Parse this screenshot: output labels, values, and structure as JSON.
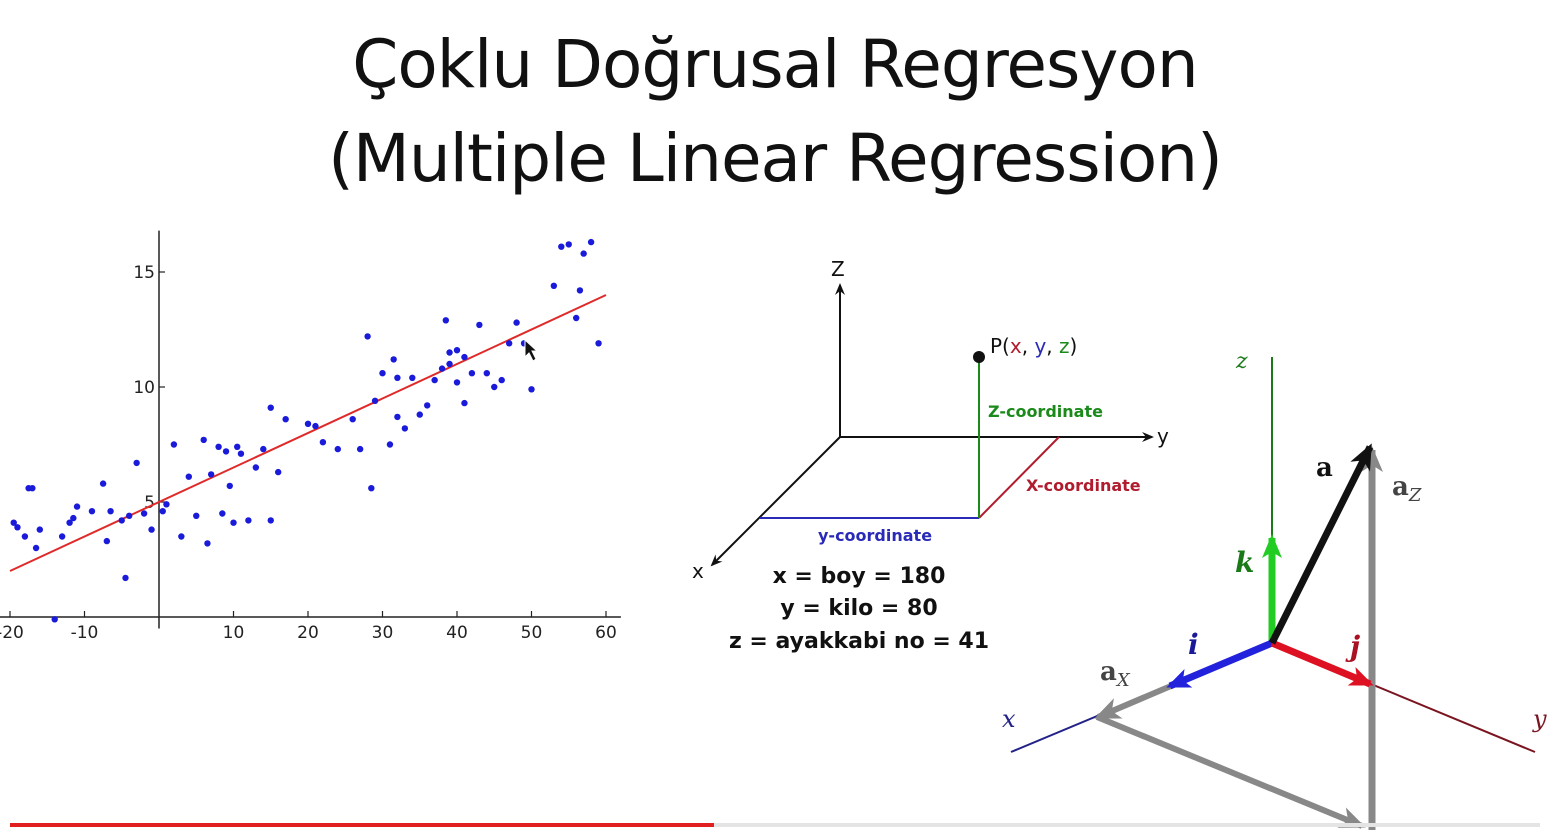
{
  "slide": {
    "title_line1": "Çoklu Doğrusal Regresyon",
    "title_line2": "(Multiple Linear Regression)"
  },
  "chart_data": {
    "type": "scatter",
    "title": "",
    "xlabel": "",
    "ylabel": "",
    "xlim": [
      -20,
      62
    ],
    "ylim": [
      -0.5,
      16.8
    ],
    "x_ticks": [
      -20,
      -10,
      10,
      20,
      30,
      40,
      50,
      60
    ],
    "y_ticks": [
      5,
      10,
      15
    ],
    "grid": false,
    "point_color": "#1a1adb",
    "fit_color": "#e02a2a",
    "series": [
      {
        "type": "scatter",
        "x": [
          -19.5,
          -19,
          -18,
          -17.5,
          -17,
          -16.5,
          -16,
          -14,
          -13,
          -12,
          -11.5,
          -11,
          -9,
          -7.5,
          -7,
          -6.5,
          -5,
          -4.5,
          -4,
          -3,
          -2,
          -1,
          0.5,
          1,
          2,
          3,
          4,
          5,
          6,
          6.5,
          7,
          8,
          8.5,
          9,
          9.5,
          10,
          10.5,
          11,
          12,
          13,
          14,
          15,
          15,
          16,
          17,
          20,
          21,
          22,
          24,
          26,
          27,
          28,
          28.5,
          29,
          30,
          31,
          31.5,
          32,
          32,
          33,
          34,
          35,
          36,
          37,
          38,
          38.5,
          39,
          39,
          40,
          40,
          41,
          41,
          42,
          43,
          44,
          45,
          46,
          47,
          48,
          49,
          50,
          53,
          54,
          55,
          56,
          56.5,
          57,
          58,
          59
        ],
        "y": [
          4.1,
          3.9,
          3.5,
          5.6,
          5.6,
          3,
          3.8,
          -0.1,
          3.5,
          4.1,
          4.3,
          4.8,
          4.6,
          5.8,
          3.3,
          4.6,
          4.2,
          1.7,
          4.4,
          6.7,
          4.5,
          3.8,
          4.6,
          4.9,
          7.5,
          3.5,
          6.1,
          4.4,
          7.7,
          3.2,
          6.2,
          7.4,
          4.5,
          7.2,
          5.7,
          4.1,
          7.4,
          7.1,
          4.2,
          6.5,
          7.3,
          4.2,
          9.1,
          6.3,
          8.6,
          8.4,
          8.3,
          7.6,
          7.3,
          8.6,
          7.3,
          12.2,
          5.6,
          9.4,
          10.6,
          7.5,
          11.2,
          8.7,
          10.4,
          8.2,
          10.4,
          8.8,
          9.2,
          10.3,
          10.8,
          12.9,
          11.5,
          11,
          10.2,
          11.6,
          9.3,
          11.3,
          10.6,
          12.7,
          10.6,
          10,
          10.3,
          11.9,
          12.8,
          11.9,
          9.9,
          14.4,
          16.1,
          16.2,
          13,
          14.2,
          15.8,
          16.3,
          11.9
        ]
      },
      {
        "type": "line",
        "name": "",
        "x": [
          -20,
          60
        ],
        "y": [
          2,
          14
        ]
      }
    ]
  },
  "diagram_3d": {
    "axis_z": "Z",
    "axis_y": "y",
    "axis_x": "x",
    "point_prefix": "P(",
    "point_x": "x",
    "point_sep1": ", ",
    "point_y": "y",
    "point_sep2": ", ",
    "point_z": "z",
    "point_suffix": ")",
    "z_coordinate": "Z-coordinate",
    "x_coordinate": "X-coordinate",
    "y_coordinate": "y-coordinate",
    "eq1": "x = boy = 180",
    "eq2": "y = kilo = 80",
    "eq3": "z = ayakkabi no = 41",
    "colors": {
      "x": "#b01c2e",
      "y": "#2a2ab8",
      "z": "#1a8a1a"
    }
  },
  "vector_diagram": {
    "axis_z": "z",
    "axis_x": "x",
    "axis_y": "y",
    "vec_a": "a",
    "vec_az": "a",
    "sub_z": "Z",
    "vec_ax": "a",
    "sub_x": "X",
    "unit_k": "k",
    "unit_i": "i",
    "unit_j": "j",
    "colors": {
      "k": "#22cc22",
      "i": "#2222dd",
      "j": "#dd1122",
      "component": "#888888"
    }
  },
  "player": {
    "progress_fraction": 0.46
  }
}
